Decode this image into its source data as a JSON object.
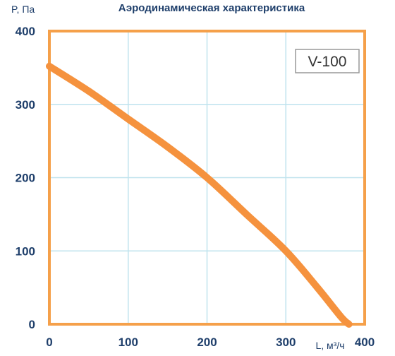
{
  "chart_data": {
    "type": "line",
    "title": "Аэродинамическая характеристика",
    "ylabel": "P, Па",
    "xlabel": "L, м³/ч",
    "xlim": [
      0,
      400
    ],
    "ylim": [
      0,
      400
    ],
    "xticks": [
      0,
      100,
      200,
      300,
      400
    ],
    "yticks": [
      0,
      100,
      200,
      300,
      400
    ],
    "grid": true,
    "legend_box": "V-100",
    "legend_position": "top-right",
    "series": [
      {
        "color": "#f5923e",
        "x": [
          0,
          50,
          100,
          150,
          200,
          250,
          300,
          340,
          370,
          380
        ],
        "y": [
          352,
          318,
          280,
          242,
          200,
          150,
          100,
          50,
          10,
          0
        ]
      }
    ],
    "colors": {
      "frame": "#f5a04a",
      "grid": "#bfe3ee",
      "text": "#1f3f6b",
      "legend_border": "#999999"
    }
  }
}
